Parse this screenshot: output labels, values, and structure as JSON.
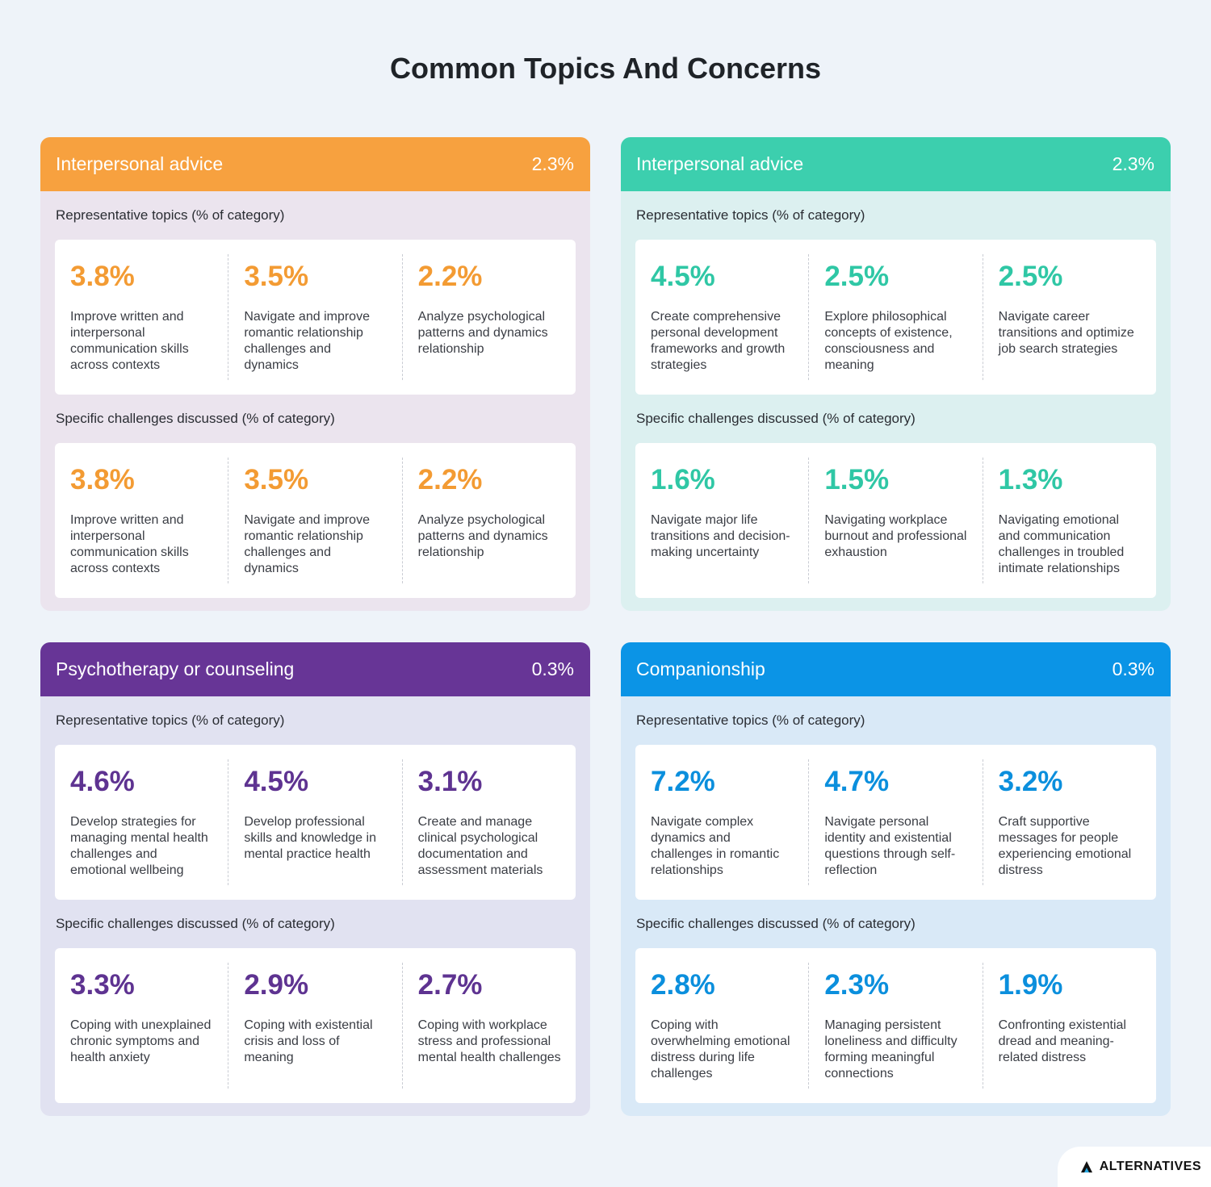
{
  "title": "Common Topics And Concerns",
  "logo": "ALTERNATIVES",
  "section_labels": {
    "topics": "Representative topics (% of category)",
    "challenges": "Specific challenges discussed (% of category)"
  },
  "cards": [
    {
      "name": "Interpersonal advice",
      "pct": "2.3%",
      "header_color": "#f7a13f",
      "bg_color": "#ebe4ee",
      "accent_color": "#f39b33",
      "topics": [
        {
          "pct": "3.8%",
          "desc": "Improve written and interpersonal communication skills across contexts"
        },
        {
          "pct": "3.5%",
          "desc": "Navigate and improve romantic relationship challenges and dynamics"
        },
        {
          "pct": "2.2%",
          "desc": "Analyze psychological patterns and dynamics relationship"
        }
      ],
      "challenges": [
        {
          "pct": "3.8%",
          "desc": "Improve written and interpersonal communication skills across contexts"
        },
        {
          "pct": "3.5%",
          "desc": "Navigate and improve romantic relationship challenges and dynamics"
        },
        {
          "pct": "2.2%",
          "desc": "Analyze psychological patterns and dynamics relationship"
        }
      ]
    },
    {
      "name": "Interpersonal advice",
      "pct": "2.3%",
      "header_color": "#3ccfae",
      "bg_color": "#dcf0f0",
      "accent_color": "#2fc7a5",
      "topics": [
        {
          "pct": "4.5%",
          "desc": "Create comprehensive personal development frameworks and growth strategies"
        },
        {
          "pct": "2.5%",
          "desc": "Explore philosophical concepts of existence, consciousness and meaning"
        },
        {
          "pct": "2.5%",
          "desc": "Navigate career transitions and optimize job search strategies"
        }
      ],
      "challenges": [
        {
          "pct": "1.6%",
          "desc": "Navigate major life transitions and decision-making uncertainty"
        },
        {
          "pct": "1.5%",
          "desc": "Navigating workplace burnout and professional exhaustion"
        },
        {
          "pct": "1.3%",
          "desc": "Navigating emotional and communication challenges in troubled intimate relationships"
        }
      ]
    },
    {
      "name": "Psychotherapy or counseling",
      "pct": "0.3%",
      "header_color": "#673596",
      "bg_color": "#e1e2f1",
      "accent_color": "#5e3391",
      "topics": [
        {
          "pct": "4.6%",
          "desc": "Develop strategies for managing mental health challenges and emotional wellbeing"
        },
        {
          "pct": "4.5%",
          "desc": "Develop professional skills and knowledge in mental practice health"
        },
        {
          "pct": "3.1%",
          "desc": "Create and manage clinical psychological documentation and assessment materials"
        }
      ],
      "challenges": [
        {
          "pct": "3.3%",
          "desc": "Coping with unexplained chronic symptoms and health anxiety"
        },
        {
          "pct": "2.9%",
          "desc": "Coping with existential crisis and loss of meaning"
        },
        {
          "pct": "2.7%",
          "desc": "Coping with workplace stress and professional mental health challenges"
        }
      ]
    },
    {
      "name": "Companionship",
      "pct": "0.3%",
      "header_color": "#0b94e6",
      "bg_color": "#d9e9f7",
      "accent_color": "#0b8fdd",
      "topics": [
        {
          "pct": "7.2%",
          "desc": "Navigate complex dynamics and challenges in romantic relationships"
        },
        {
          "pct": "4.7%",
          "desc": "Navigate personal identity and existential questions through self-reflection"
        },
        {
          "pct": "3.2%",
          "desc": "Craft supportive messages for people experiencing emotional distress"
        }
      ],
      "challenges": [
        {
          "pct": "2.8%",
          "desc": "Coping with overwhelming emotional distress during life challenges"
        },
        {
          "pct": "2.3%",
          "desc": "Managing persistent loneliness and difficulty forming meaningful connections"
        },
        {
          "pct": "1.9%",
          "desc": "Confronting existential dread and meaning-related distress"
        }
      ]
    }
  ]
}
